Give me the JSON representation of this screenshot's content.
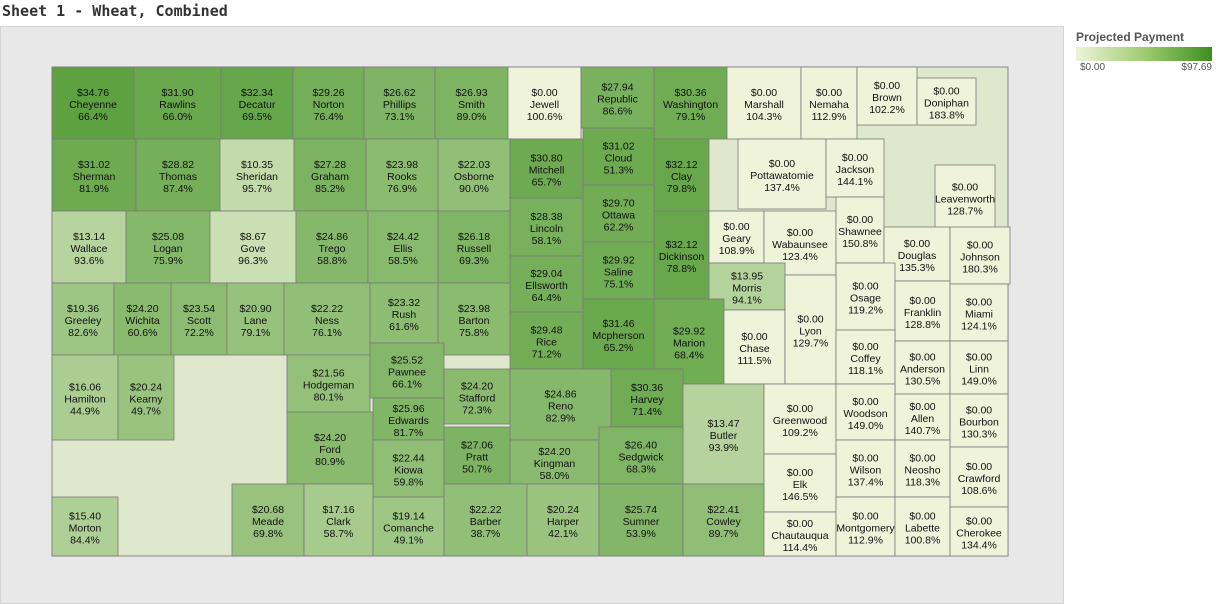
{
  "sheet_title": "Sheet 1 - Wheat, Combined",
  "legend": {
    "title": "Projected Payment",
    "min_label": "$0.00",
    "max_label": "$97.69",
    "min_value": 0,
    "max_value": 97.69,
    "color_low": "#eef3d9",
    "color_high": "#3d8f1e"
  },
  "counties": [
    {
      "name": "Cheyenne",
      "payment": "$34.76",
      "pct": "66.4%",
      "value": 34.76
    },
    {
      "name": "Rawlins",
      "payment": "$31.90",
      "pct": "66.0%",
      "value": 31.9
    },
    {
      "name": "Decatur",
      "payment": "$32.34",
      "pct": "69.5%",
      "value": 32.34
    },
    {
      "name": "Norton",
      "payment": "$29.26",
      "pct": "76.4%",
      "value": 29.26
    },
    {
      "name": "Phillips",
      "payment": "$26.62",
      "pct": "73.1%",
      "value": 26.62
    },
    {
      "name": "Smith",
      "payment": "$26.93",
      "pct": "89.0%",
      "value": 26.93
    },
    {
      "name": "Jewell",
      "payment": "$0.00",
      "pct": "100.6%",
      "value": 0
    },
    {
      "name": "Republic",
      "payment": "$27.94",
      "pct": "86.6%",
      "value": 27.94
    },
    {
      "name": "Washington",
      "payment": "$30.36",
      "pct": "79.1%",
      "value": 30.36
    },
    {
      "name": "Marshall",
      "payment": "$0.00",
      "pct": "104.3%",
      "value": 0
    },
    {
      "name": "Nemaha",
      "payment": "$0.00",
      "pct": "112.9%",
      "value": 0
    },
    {
      "name": "Brown",
      "payment": "$0.00",
      "pct": "102.2%",
      "value": 0
    },
    {
      "name": "Doniphan",
      "payment": "$0.00",
      "pct": "183.8%",
      "value": 0
    },
    {
      "name": "Sherman",
      "payment": "$31.02",
      "pct": "81.9%",
      "value": 31.02
    },
    {
      "name": "Thomas",
      "payment": "$28.82",
      "pct": "87.4%",
      "value": 28.82
    },
    {
      "name": "Sheridan",
      "payment": "$10.35",
      "pct": "95.7%",
      "value": 10.35
    },
    {
      "name": "Graham",
      "payment": "$27.28",
      "pct": "85.2%",
      "value": 27.28
    },
    {
      "name": "Rooks",
      "payment": "$23.98",
      "pct": "76.9%",
      "value": 23.98
    },
    {
      "name": "Osborne",
      "payment": "$22.03",
      "pct": "90.0%",
      "value": 22.03
    },
    {
      "name": "Mitchell",
      "payment": "$30.80",
      "pct": "65.7%",
      "value": 30.8
    },
    {
      "name": "Cloud",
      "payment": "$31.02",
      "pct": "51.3%",
      "value": 31.02
    },
    {
      "name": "Clay",
      "payment": "$32.12",
      "pct": "79.8%",
      "value": 32.12
    },
    {
      "name": "Pottawatomie",
      "payment": "$0.00",
      "pct": "137.4%",
      "value": 0
    },
    {
      "name": "Jackson",
      "payment": "$0.00",
      "pct": "144.1%",
      "value": 0
    },
    {
      "name": "Leavenworth",
      "payment": "$0.00",
      "pct": "128.7%",
      "value": 0
    },
    {
      "name": "Wallace",
      "payment": "$13.14",
      "pct": "93.6%",
      "value": 13.14
    },
    {
      "name": "Logan",
      "payment": "$25.08",
      "pct": "75.9%",
      "value": 25.08
    },
    {
      "name": "Gove",
      "payment": "$8.67",
      "pct": "96.3%",
      "value": 8.67
    },
    {
      "name": "Trego",
      "payment": "$24.86",
      "pct": "58.8%",
      "value": 24.86
    },
    {
      "name": "Ellis",
      "payment": "$24.42",
      "pct": "58.5%",
      "value": 24.42
    },
    {
      "name": "Russell",
      "payment": "$26.18",
      "pct": "69.3%",
      "value": 26.18
    },
    {
      "name": "Lincoln",
      "payment": "$28.38",
      "pct": "58.1%",
      "value": 28.38
    },
    {
      "name": "Ottawa",
      "payment": "$29.70",
      "pct": "62.2%",
      "value": 29.7
    },
    {
      "name": "Dickinson",
      "payment": "$32.12",
      "pct": "78.8%",
      "value": 32.12
    },
    {
      "name": "Geary",
      "payment": "$0.00",
      "pct": "108.9%",
      "value": 0
    },
    {
      "name": "Wabaunsee",
      "payment": "$0.00",
      "pct": "123.4%",
      "value": 0
    },
    {
      "name": "Shawnee",
      "payment": "$0.00",
      "pct": "150.8%",
      "value": 0
    },
    {
      "name": "Douglas",
      "payment": "$0.00",
      "pct": "135.3%",
      "value": 0
    },
    {
      "name": "Johnson",
      "payment": "$0.00",
      "pct": "180.3%",
      "value": 0
    },
    {
      "name": "Greeley",
      "payment": "$19.36",
      "pct": "82.6%",
      "value": 19.36
    },
    {
      "name": "Wichita",
      "payment": "$24.20",
      "pct": "60.6%",
      "value": 24.2
    },
    {
      "name": "Scott",
      "payment": "$23.54",
      "pct": "72.2%",
      "value": 23.54
    },
    {
      "name": "Lane",
      "payment": "$20.90",
      "pct": "79.1%",
      "value": 20.9
    },
    {
      "name": "Ness",
      "payment": "$22.22",
      "pct": "76.1%",
      "value": 22.22
    },
    {
      "name": "Rush",
      "payment": "$23.32",
      "pct": "61.6%",
      "value": 23.32
    },
    {
      "name": "Barton",
      "payment": "$23.98",
      "pct": "75.8%",
      "value": 23.98
    },
    {
      "name": "Ellsworth",
      "payment": "$29.04",
      "pct": "64.4%",
      "value": 29.04
    },
    {
      "name": "Saline",
      "payment": "$29.92",
      "pct": "75.1%",
      "value": 29.92
    },
    {
      "name": "Morris",
      "payment": "$13.95",
      "pct": "94.1%",
      "value": 13.95
    },
    {
      "name": "Osage",
      "payment": "$0.00",
      "pct": "119.2%",
      "value": 0
    },
    {
      "name": "Franklin",
      "payment": "$0.00",
      "pct": "128.8%",
      "value": 0
    },
    {
      "name": "Miami",
      "payment": "$0.00",
      "pct": "124.1%",
      "value": 0
    },
    {
      "name": "Hamilton",
      "payment": "$16.06",
      "pct": "44.9%",
      "value": 16.06
    },
    {
      "name": "Kearny",
      "payment": "$20.24",
      "pct": "49.7%",
      "value": 20.24
    },
    {
      "name": "Hodgeman",
      "payment": "$21.56",
      "pct": "80.1%",
      "value": 21.56
    },
    {
      "name": "Pawnee",
      "payment": "$25.52",
      "pct": "66.1%",
      "value": 25.52
    },
    {
      "name": "Stafford",
      "payment": "$24.20",
      "pct": "72.3%",
      "value": 24.2
    },
    {
      "name": "Rice",
      "payment": "$29.48",
      "pct": "71.2%",
      "value": 29.48
    },
    {
      "name": "Mcpherson",
      "payment": "$31.46",
      "pct": "65.2%",
      "value": 31.46
    },
    {
      "name": "Marion",
      "payment": "$29.92",
      "pct": "68.4%",
      "value": 29.92
    },
    {
      "name": "Chase",
      "payment": "$0.00",
      "pct": "111.5%",
      "value": 0
    },
    {
      "name": "Lyon",
      "payment": "$0.00",
      "pct": "129.7%",
      "value": 0
    },
    {
      "name": "Coffey",
      "payment": "$0.00",
      "pct": "118.1%",
      "value": 0
    },
    {
      "name": "Anderson",
      "payment": "$0.00",
      "pct": "130.5%",
      "value": 0
    },
    {
      "name": "Linn",
      "payment": "$0.00",
      "pct": "149.0%",
      "value": 0
    },
    {
      "name": "Ford",
      "payment": "$24.20",
      "pct": "80.9%",
      "value": 24.2
    },
    {
      "name": "Edwards",
      "payment": "$25.96",
      "pct": "81.7%",
      "value": 25.96
    },
    {
      "name": "Reno",
      "payment": "$24.86",
      "pct": "82.9%",
      "value": 24.86
    },
    {
      "name": "Harvey",
      "payment": "$30.36",
      "pct": "71.4%",
      "value": 30.36
    },
    {
      "name": "Butler",
      "payment": "$13.47",
      "pct": "93.9%",
      "value": 13.47
    },
    {
      "name": "Greenwood",
      "payment": "$0.00",
      "pct": "109.2%",
      "value": 0
    },
    {
      "name": "Woodson",
      "payment": "$0.00",
      "pct": "149.0%",
      "value": 0
    },
    {
      "name": "Allen",
      "payment": "$0.00",
      "pct": "140.7%",
      "value": 0
    },
    {
      "name": "Bourbon",
      "payment": "$0.00",
      "pct": "130.3%",
      "value": 0
    },
    {
      "name": "Kiowa",
      "payment": "$22.44",
      "pct": "59.8%",
      "value": 22.44
    },
    {
      "name": "Pratt",
      "payment": "$27.06",
      "pct": "50.7%",
      "value": 27.06
    },
    {
      "name": "Kingman",
      "payment": "$24.20",
      "pct": "58.0%",
      "value": 24.2
    },
    {
      "name": "Sedgwick",
      "payment": "$26.40",
      "pct": "68.3%",
      "value": 26.4
    },
    {
      "name": "Wilson",
      "payment": "$0.00",
      "pct": "137.4%",
      "value": 0
    },
    {
      "name": "Neosho",
      "payment": "$0.00",
      "pct": "118.3%",
      "value": 0
    },
    {
      "name": "Crawford",
      "payment": "$0.00",
      "pct": "108.6%",
      "value": 0
    },
    {
      "name": "Elk",
      "payment": "$0.00",
      "pct": "146.5%",
      "value": 0
    },
    {
      "name": "Morton",
      "payment": "$15.40",
      "pct": "84.4%",
      "value": 15.4
    },
    {
      "name": "Meade",
      "payment": "$20.68",
      "pct": "69.8%",
      "value": 20.68
    },
    {
      "name": "Clark",
      "payment": "$17.16",
      "pct": "58.7%",
      "value": 17.16
    },
    {
      "name": "Comanche",
      "payment": "$19.14",
      "pct": "49.1%",
      "value": 19.14
    },
    {
      "name": "Barber",
      "payment": "$22.22",
      "pct": "38.7%",
      "value": 22.22
    },
    {
      "name": "Harper",
      "payment": "$20.24",
      "pct": "42.1%",
      "value": 20.24
    },
    {
      "name": "Sumner",
      "payment": "$25.74",
      "pct": "53.9%",
      "value": 25.74
    },
    {
      "name": "Cowley",
      "payment": "$22.41",
      "pct": "89.7%",
      "value": 22.41
    },
    {
      "name": "Chautauqua",
      "payment": "$0.00",
      "pct": "114.4%",
      "value": 0
    },
    {
      "name": "Montgomery",
      "payment": "$0.00",
      "pct": "112.9%",
      "value": 0
    },
    {
      "name": "Labette",
      "payment": "$0.00",
      "pct": "100.8%",
      "value": 0
    },
    {
      "name": "Cherokee",
      "payment": "$0.00",
      "pct": "134.4%",
      "value": 0
    }
  ]
}
